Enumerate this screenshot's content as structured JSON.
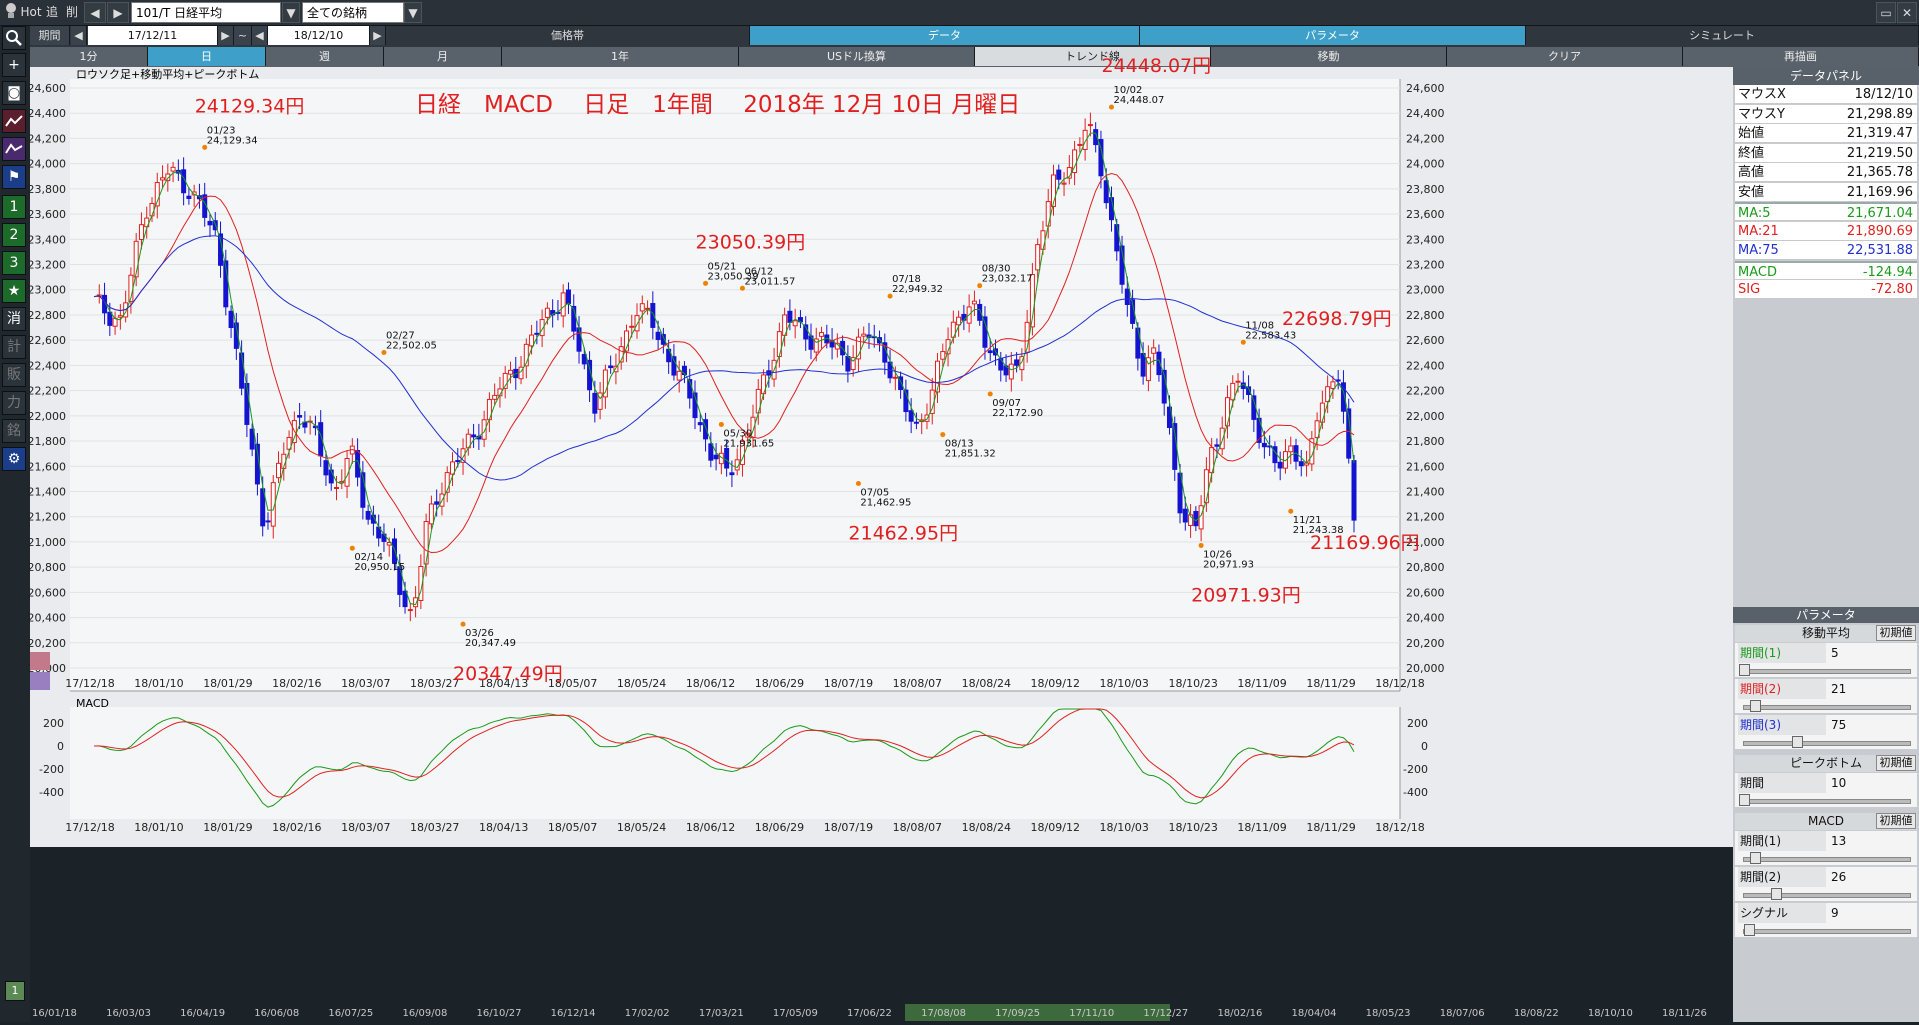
{
  "topbar": {
    "hot": "Hot",
    "trace": "追",
    "delete": "削",
    "symbol": "101/T 日経平均",
    "filter": "全ての銘柄"
  },
  "periodbar": {
    "period_label": "期間",
    "from_date": "17/12/11",
    "tilde": "~",
    "to_date": "18/12/10",
    "tabs": [
      "価格帯",
      "データ",
      "パラメータ",
      "シミュレート"
    ]
  },
  "intervalbar": {
    "items": [
      "1分",
      "日",
      "週",
      "月",
      "1年",
      "USドル換算",
      "トレンド線",
      "移動",
      "クリア",
      "再描画"
    ],
    "active_index": 1
  },
  "leftbar": {
    "buttons": [
      "1",
      "2",
      "3",
      "★",
      "消",
      "計",
      "販",
      "力",
      "銘"
    ]
  },
  "chart": {
    "legend": "ロウソク足+移動平均+ピークボトム",
    "headline": "日経　MACD　 日足　1年間　 2018年 12月 10日 月曜日",
    "y_ticks": [
      "24,600",
      "24,400",
      "24,200",
      "24,000",
      "23,800",
      "23,600",
      "23,400",
      "23,200",
      "23,000",
      "22,800",
      "22,600",
      "22,400",
      "22,200",
      "22,000",
      "21,800",
      "21,600",
      "21,400",
      "21,200",
      "21,000",
      "20,800",
      "20,600",
      "20,400",
      "20,200",
      "20,000"
    ],
    "x_ticks": [
      "17/12/18",
      "18/01/10",
      "18/01/29",
      "18/02/16",
      "18/03/07",
      "18/03/27",
      "18/04/13",
      "18/05/07",
      "18/05/24",
      "18/06/12",
      "18/06/29",
      "18/07/19",
      "18/08/07",
      "18/08/24",
      "18/09/12",
      "18/10/03",
      "18/10/23",
      "18/11/09",
      "18/11/29",
      "18/12/18"
    ],
    "peaks": [
      {
        "date": "01/23",
        "value": "24,129.34",
        "big": "24129.34円"
      },
      {
        "date": "02/14",
        "value": "20,950.15",
        "big": ""
      },
      {
        "date": "02/27",
        "value": "22,502.05",
        "big": ""
      },
      {
        "date": "03/26",
        "value": "20,347.49",
        "big": "20347.49円"
      },
      {
        "date": "05/21",
        "value": "23,050.39",
        "big": "23050.39円"
      },
      {
        "date": "05/30",
        "value": "21,931.65",
        "big": ""
      },
      {
        "date": "06/12",
        "value": "23,011.57",
        "big": ""
      },
      {
        "date": "07/05",
        "value": "21,462.95",
        "big": "21462.95円"
      },
      {
        "date": "07/18",
        "value": "22,949.32",
        "big": ""
      },
      {
        "date": "08/13",
        "value": "21,851.32",
        "big": ""
      },
      {
        "date": "08/30",
        "value": "23,032.17",
        "big": ""
      },
      {
        "date": "09/07",
        "value": "22,172.90",
        "big": ""
      },
      {
        "date": "10/02",
        "value": "24,448.07",
        "big": "24448.07円"
      },
      {
        "date": "10/26",
        "value": "20,971.93",
        "big": "20971.93円"
      },
      {
        "date": "11/08",
        "value": "22,583.43",
        "big": ""
      },
      {
        "date": "11/21",
        "value": "21,243.38",
        "big": ""
      }
    ],
    "extra_labels": [
      "22698.79円",
      "21169.96円"
    ]
  },
  "macd": {
    "label": "MACD",
    "y_ticks": [
      "200",
      "0",
      "-200",
      "-400"
    ],
    "x_ticks": [
      "17/12/18",
      "18/01/10",
      "18/01/29",
      "18/02/16",
      "18/03/07",
      "18/03/27",
      "18/04/13",
      "18/05/07",
      "18/05/24",
      "18/06/12",
      "18/06/29",
      "18/07/19",
      "18/08/07",
      "18/08/24",
      "18/09/12",
      "18/10/03",
      "18/10/23",
      "18/11/09",
      "18/11/29",
      "18/12/18"
    ]
  },
  "timeline": {
    "ticks": [
      "16/01/18",
      "16/03/03",
      "16/04/19",
      "16/06/08",
      "16/07/25",
      "16/09/08",
      "16/10/27",
      "16/12/14",
      "17/02/02",
      "17/03/21",
      "17/05/09",
      "17/06/22",
      "17/08/08",
      "17/09/25",
      "17/11/10",
      "17/12/27",
      "18/02/16",
      "18/04/04",
      "18/05/23",
      "18/07/06",
      "18/08/22",
      "18/10/10",
      "18/11/26"
    ]
  },
  "datapanel": {
    "title": "データパネル",
    "rows": [
      {
        "k": "マウスX",
        "v": "18/12/10",
        "color": "#111111"
      },
      {
        "k": "マウスY",
        "v": "21,298.89",
        "color": "#111111"
      },
      {
        "k": "始値",
        "v": "21,319.47",
        "color": "#111111"
      },
      {
        "k": "終値",
        "v": "21,219.50",
        "color": "#111111"
      },
      {
        "k": "高値",
        "v": "21,365.78",
        "color": "#111111"
      },
      {
        "k": "安値",
        "v": "21,169.96",
        "color": "#111111"
      },
      {
        "k": "MA:5",
        "v": "21,671.04",
        "color": "#1a9a1a"
      },
      {
        "k": "MA:21",
        "v": "21,890.69",
        "color": "#e02020"
      },
      {
        "k": "MA:75",
        "v": "22,531.88",
        "color": "#2030d0"
      },
      {
        "k": "MACD",
        "v": "-124.94",
        "color": "#1a9a1a"
      },
      {
        "k": "SIG",
        "v": "-72.80",
        "color": "#e02020"
      }
    ]
  },
  "params": {
    "title": "パラメータ",
    "init": "初期値",
    "ma": {
      "head": "移動平均",
      "items": [
        {
          "label": "期間(1)",
          "value": "5",
          "color": "#1a9a1a",
          "pos": 0.0
        },
        {
          "label": "期間(2)",
          "value": "21",
          "color": "#e02020",
          "pos": 0.07
        },
        {
          "label": "期間(3)",
          "value": "75",
          "color": "#2030d0",
          "pos": 0.33
        }
      ]
    },
    "pb": {
      "head": "ピークボトム",
      "items": [
        {
          "label": "期間",
          "value": "10",
          "color": "#111111",
          "pos": 0.0
        }
      ]
    },
    "macd": {
      "head": "MACD",
      "items": [
        {
          "label": "期間(1)",
          "value": "13",
          "color": "#111111",
          "pos": 0.07
        },
        {
          "label": "期間(2)",
          "value": "26",
          "color": "#111111",
          "pos": 0.2
        },
        {
          "label": "シグナル",
          "value": "9",
          "color": "#111111",
          "pos": 0.03
        }
      ]
    }
  },
  "colors": {
    "ma5": "#1a9a1a",
    "ma21": "#e02020",
    "ma75": "#2030d0",
    "candle_up": "#e02020",
    "candle_down": "#1414d0",
    "peak": "#e02020"
  }
}
